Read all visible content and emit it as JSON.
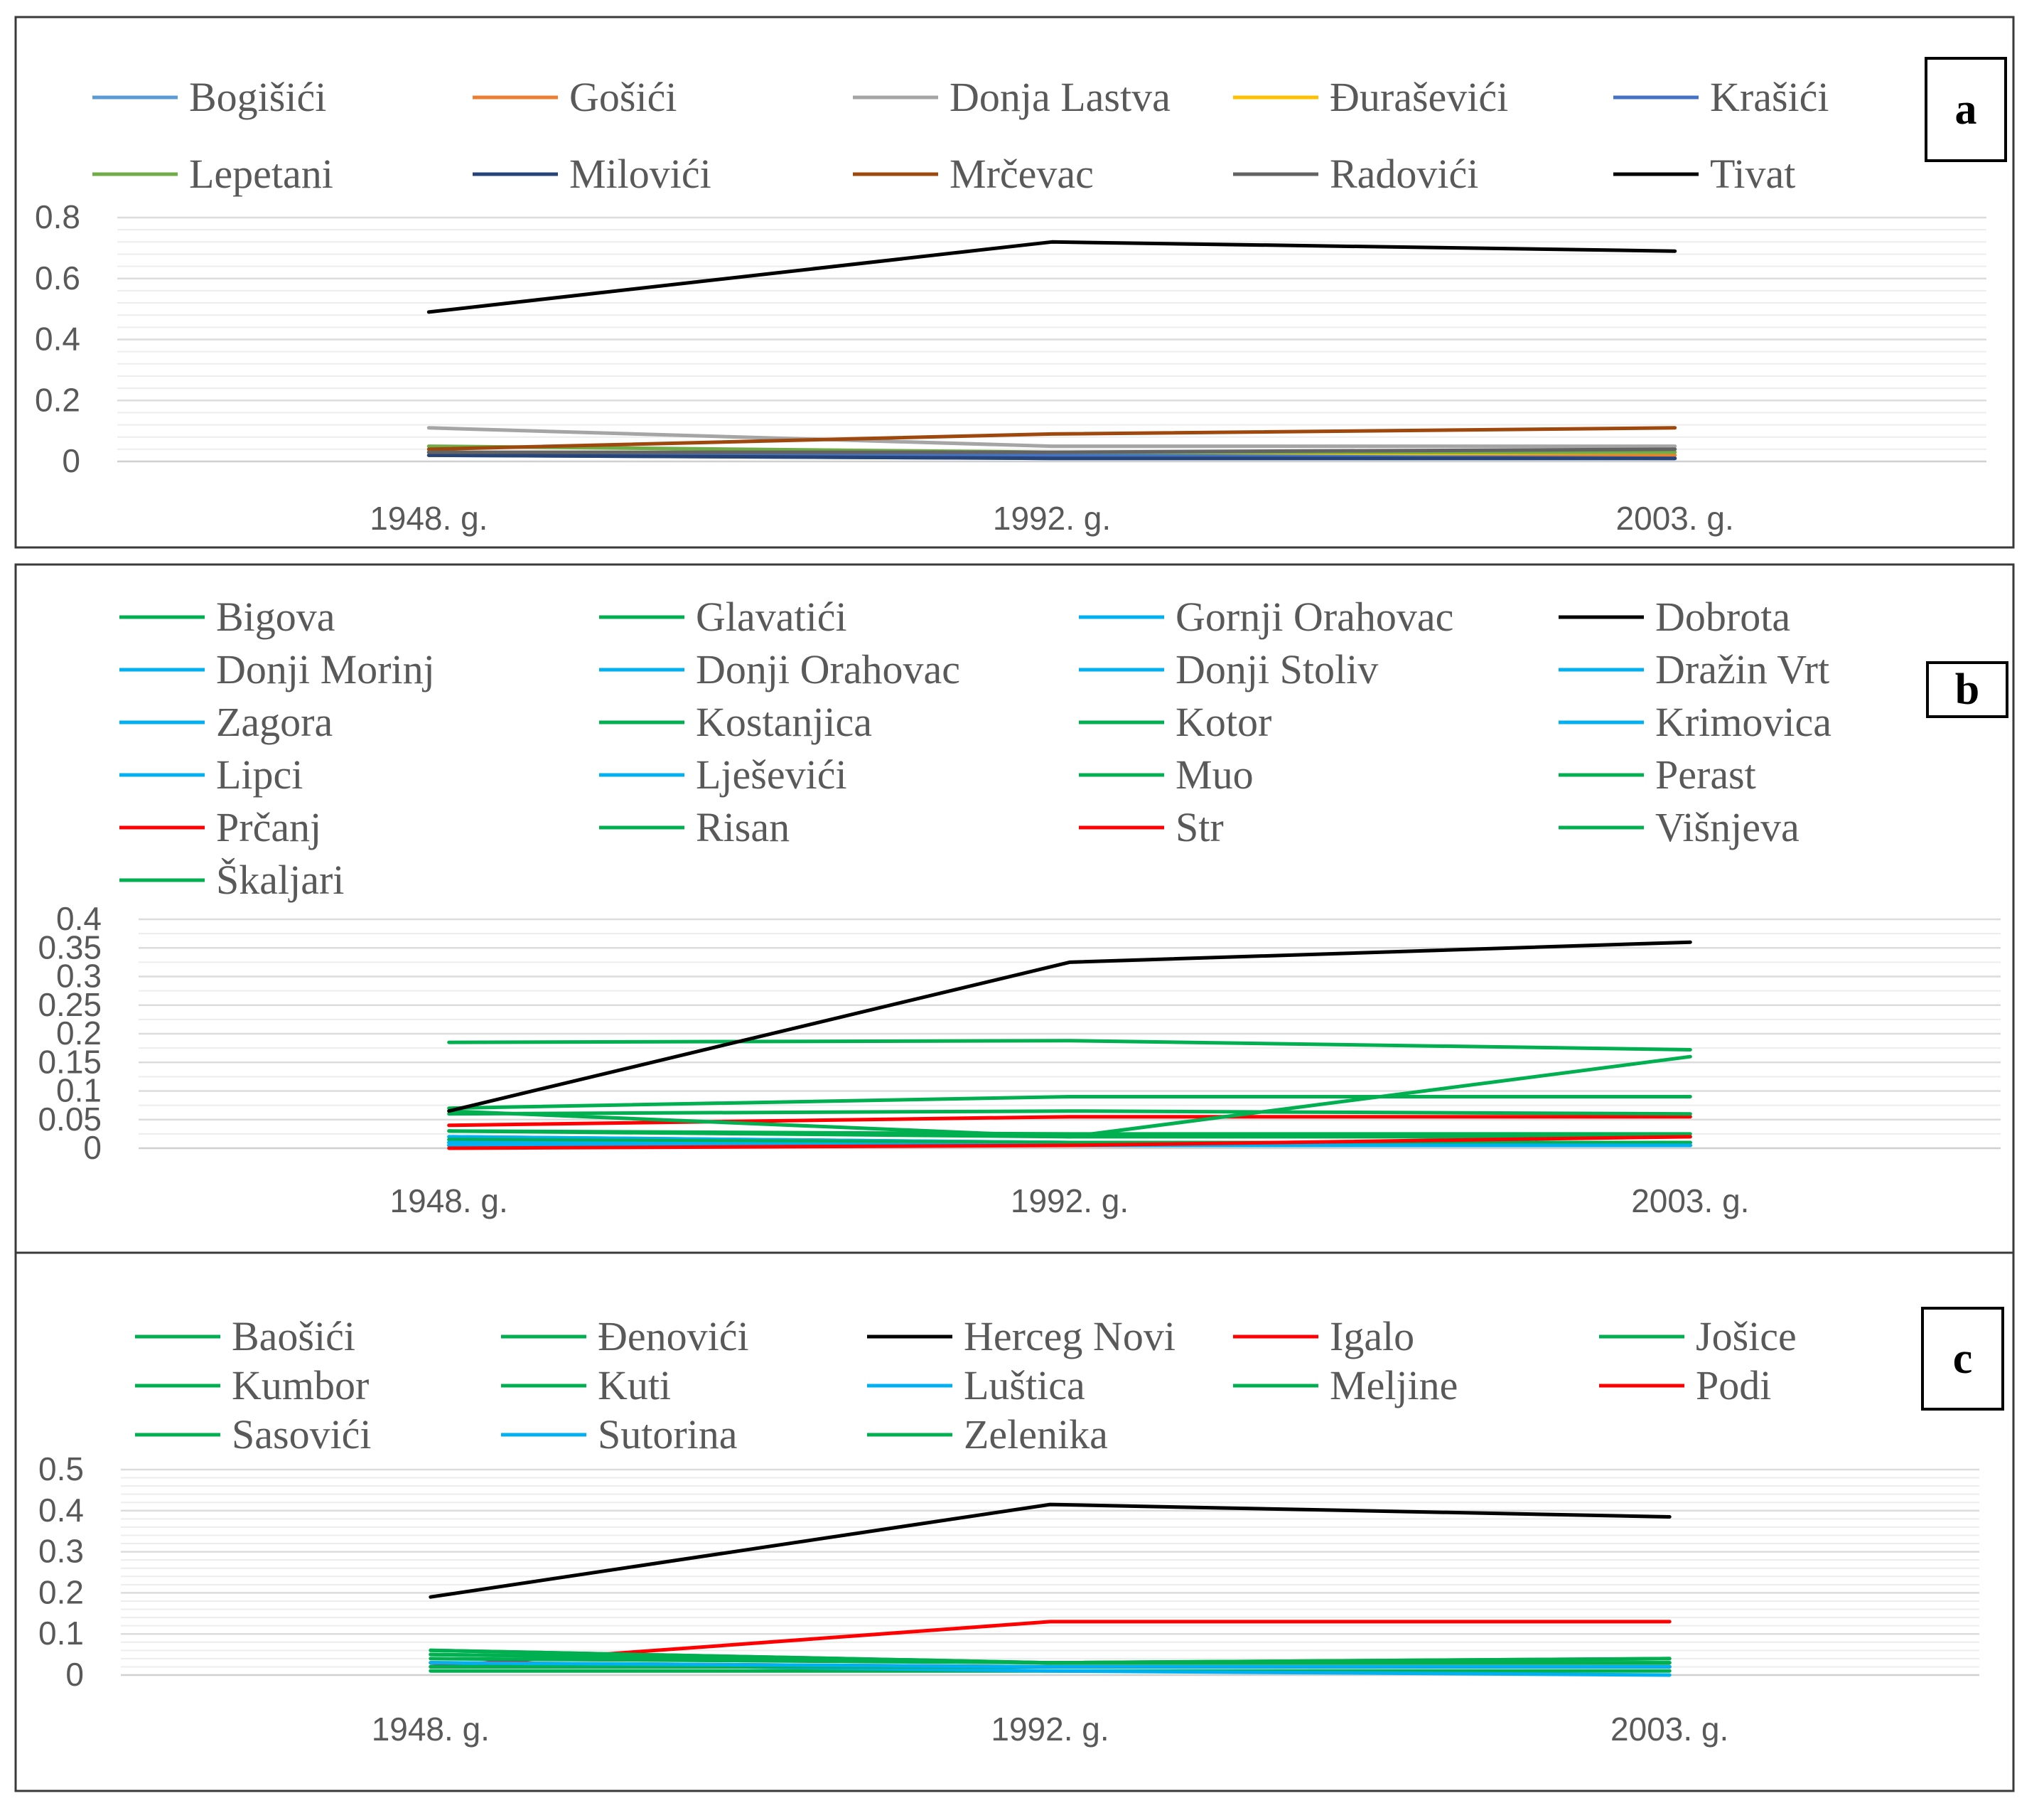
{
  "chart_data": [
    {
      "type": "line",
      "panel_label": "a",
      "categories": [
        "1948. g.",
        "1992. g.",
        "2003. g."
      ],
      "ylim": [
        0,
        0.8
      ],
      "yticks": [
        "0",
        "0.2",
        "0.4",
        "0.6",
        "0.8"
      ],
      "legend_position": "top",
      "series": [
        {
          "name": "Bogišići",
          "color": "#5B9BD5",
          "values": [
            0.02,
            0.01,
            0.01
          ]
        },
        {
          "name": "Gošići",
          "color": "#ED7D31",
          "values": [
            0.03,
            0.02,
            0.02
          ]
        },
        {
          "name": "Donja Lastva",
          "color": "#A5A5A5",
          "values": [
            0.11,
            0.05,
            0.05
          ]
        },
        {
          "name": "Đuraševići",
          "color": "#FFC000",
          "values": [
            0.02,
            0.02,
            0.03
          ]
        },
        {
          "name": "Krašići",
          "color": "#4472C4",
          "values": [
            0.03,
            0.02,
            0.01
          ]
        },
        {
          "name": "Lepetani",
          "color": "#70AD47",
          "values": [
            0.05,
            0.03,
            0.03
          ]
        },
        {
          "name": "Milovići",
          "color": "#264478",
          "values": [
            0.02,
            0.01,
            0.01
          ]
        },
        {
          "name": "Mrčevac",
          "color": "#9E480E",
          "values": [
            0.04,
            0.09,
            0.11
          ]
        },
        {
          "name": "Radovići",
          "color": "#636363",
          "values": [
            0.03,
            0.03,
            0.04
          ]
        },
        {
          "name": "Tivat",
          "color": "#000000",
          "values": [
            0.49,
            0.72,
            0.69
          ]
        }
      ]
    },
    {
      "type": "line",
      "panel_label": "b",
      "categories": [
        "1948. g.",
        "1992. g.",
        "2003. g."
      ],
      "ylim": [
        0,
        0.4
      ],
      "yticks": [
        "0",
        "0.05",
        "0.1",
        "0.15",
        "0.2",
        "0.25",
        "0.3",
        "0.35",
        "0.4"
      ],
      "legend_position": "top",
      "series": [
        {
          "name": "Bigova",
          "color": "#00B050",
          "values": [
            0.005,
            0.005,
            0.005
          ]
        },
        {
          "name": "Glavatići",
          "color": "#00B050",
          "values": [
            0.01,
            0.005,
            0.005
          ]
        },
        {
          "name": "Gornji Orahovac",
          "color": "#00B0F0",
          "values": [
            0.01,
            0.005,
            0.005
          ]
        },
        {
          "name": "Dobrota",
          "color": "#000000",
          "values": [
            0.065,
            0.325,
            0.36
          ]
        },
        {
          "name": "Donji Morinj",
          "color": "#00B0F0",
          "values": [
            0.02,
            0.01,
            0.01
          ]
        },
        {
          "name": "Donji Orahovac",
          "color": "#00B0F0",
          "values": [
            0.015,
            0.01,
            0.01
          ]
        },
        {
          "name": "Donji Stoliv",
          "color": "#00B0F0",
          "values": [
            0.02,
            0.01,
            0.01
          ]
        },
        {
          "name": "Dražin Vrt",
          "color": "#00B0F0",
          "values": [
            0.005,
            0.005,
            0.005
          ]
        },
        {
          "name": "Zagora",
          "color": "#00B0F0",
          "values": [
            0.01,
            0.005,
            0.005
          ]
        },
        {
          "name": "Kostanjica",
          "color": "#00B050",
          "values": [
            0.015,
            0.01,
            0.01
          ]
        },
        {
          "name": "Kotor",
          "color": "#00B050",
          "values": [
            0.185,
            0.188,
            0.172
          ]
        },
        {
          "name": "Krimovica",
          "color": "#00B0F0",
          "values": [
            0.01,
            0.005,
            0.005
          ]
        },
        {
          "name": "Lipci",
          "color": "#00B0F0",
          "values": [
            0.005,
            0.005,
            0.005
          ]
        },
        {
          "name": "Lješevići",
          "color": "#00B0F0",
          "values": [
            0.005,
            0.005,
            0.005
          ]
        },
        {
          "name": "Muo",
          "color": "#00B050",
          "values": [
            0.03,
            0.025,
            0.025
          ]
        },
        {
          "name": "Perast",
          "color": "#00B050",
          "values": [
            0.03,
            0.02,
            0.02
          ]
        },
        {
          "name": "Prčanj",
          "color": "#FF0000",
          "values": [
            0.04,
            0.055,
            0.055
          ]
        },
        {
          "name": "Risan",
          "color": "#00B050",
          "values": [
            0.065,
            0.02,
            0.16
          ]
        },
        {
          "name": "Str",
          "color": "#FF0000",
          "values": [
            0.0,
            0.005,
            0.02
          ]
        },
        {
          "name": "Višnjeva",
          "color": "#00B050",
          "values": [
            0.07,
            0.09,
            0.09
          ]
        },
        {
          "name": "Škaljari",
          "color": "#00B050",
          "values": [
            0.06,
            0.065,
            0.06
          ]
        }
      ]
    },
    {
      "type": "line",
      "panel_label": "c",
      "categories": [
        "1948. g.",
        "1992. g.",
        "2003. g."
      ],
      "ylim": [
        0,
        0.5
      ],
      "yticks": [
        "0",
        "0.1",
        "0.2",
        "0.3",
        "0.4",
        "0.5"
      ],
      "legend_position": "top",
      "series": [
        {
          "name": "Baošići",
          "color": "#00B050",
          "values": [
            0.05,
            0.03,
            0.04
          ]
        },
        {
          "name": "Đenovići",
          "color": "#00B050",
          "values": [
            0.06,
            0.03,
            0.04
          ]
        },
        {
          "name": "Herceg Novi",
          "color": "#000000",
          "values": [
            0.19,
            0.415,
            0.385
          ]
        },
        {
          "name": "Igalo",
          "color": "#FF0000",
          "values": [
            0.02,
            0.13,
            0.13
          ]
        },
        {
          "name": "Jošice",
          "color": "#00B050",
          "values": [
            0.01,
            0.01,
            0.01
          ]
        },
        {
          "name": "Kumbor",
          "color": "#00B050",
          "values": [
            0.05,
            0.03,
            0.03
          ]
        },
        {
          "name": "Kuti",
          "color": "#00B050",
          "values": [
            0.02,
            0.02,
            0.02
          ]
        },
        {
          "name": "Luštica",
          "color": "#00B0F0",
          "values": [
            0.03,
            0.01,
            0.0
          ]
        },
        {
          "name": "Meljine",
          "color": "#00B050",
          "values": [
            0.04,
            0.03,
            0.03
          ]
        },
        {
          "name": "Podi",
          "color": "#FF0000",
          "values": [
            0.03,
            0.02,
            0.02
          ]
        },
        {
          "name": "Sasovići",
          "color": "#00B050",
          "values": [
            0.02,
            0.02,
            0.02
          ]
        },
        {
          "name": "Sutorina",
          "color": "#00B0F0",
          "values": [
            0.03,
            0.02,
            0.02
          ]
        },
        {
          "name": "Zelenika",
          "color": "#00B050",
          "values": [
            0.06,
            0.03,
            0.03
          ]
        }
      ]
    }
  ]
}
